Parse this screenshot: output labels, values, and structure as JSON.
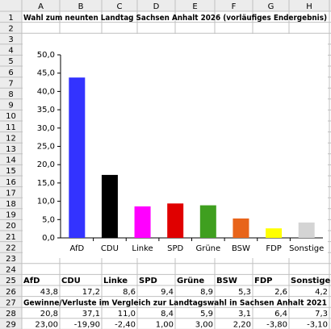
{
  "sheet": {
    "columns": [
      "A",
      "B",
      "C",
      "D",
      "E",
      "F",
      "G",
      "H"
    ],
    "row_numbers": [
      1,
      2,
      3,
      4,
      5,
      6,
      7,
      8,
      9,
      10,
      11,
      12,
      13,
      14,
      15,
      16,
      17,
      18,
      19,
      20,
      21,
      22,
      23,
      24,
      25,
      26,
      27,
      28,
      29
    ],
    "rows": [
      {
        "row": 1,
        "cells": [
          "Wahl zum neunten Landtag Sachsen Anhalt 2026 (vorläufiges Endergebnis)"
        ]
      },
      {
        "row": 25,
        "cells": [
          "AfD",
          "CDU",
          "Linke",
          "SPD",
          "Grüne",
          "BSW",
          "FDP",
          "Sonstige"
        ]
      },
      {
        "row": 26,
        "cells": [
          "43,8",
          "17,2",
          "8,6",
          "9,4",
          "8,9",
          "5,3",
          "2,6",
          "4,2"
        ]
      },
      {
        "row": 27,
        "cells": [
          "Gewinne/Verluste im Vergleich zur Landtagswahl in Sachsen Anhalt 2021"
        ]
      },
      {
        "row": 28,
        "cells": [
          "20,8",
          "37,1",
          "11,0",
          "8,4",
          "5,9",
          "3,1",
          "6,4",
          "7,3"
        ]
      },
      {
        "row": 29,
        "cells": [
          "23,00",
          "-19,90",
          "-2,40",
          "1,00",
          "3,00",
          "2,20",
          "-3,80",
          "-3,10"
        ]
      }
    ]
  },
  "chart_data": {
    "type": "bar",
    "categories": [
      "AfD",
      "CDU",
      "Linke",
      "SPD",
      "Grüne",
      "BSW",
      "FDP",
      "Sonstige"
    ],
    "values": [
      43.8,
      17.2,
      8.6,
      9.4,
      8.9,
      5.3,
      2.6,
      4.2
    ],
    "colors": [
      "#3333ff",
      "#000000",
      "#ff00ff",
      "#e00000",
      "#3f9f1f",
      "#e8641a",
      "#ffff00",
      "#d4d4d4"
    ],
    "ylim": [
      0,
      50
    ],
    "yticks": [
      {
        "value": 0,
        "label": "0,0"
      },
      {
        "value": 5,
        "label": "5,0"
      },
      {
        "value": 10,
        "label": "10,0"
      },
      {
        "value": 15,
        "label": "15,0"
      },
      {
        "value": 20,
        "label": "20,0"
      },
      {
        "value": 25,
        "label": "25,0"
      },
      {
        "value": 30,
        "label": "30,0"
      },
      {
        "value": 35,
        "label": "35,0"
      },
      {
        "value": 40,
        "label": "40,0"
      },
      {
        "value": 45,
        "label": "45,0"
      },
      {
        "value": 50,
        "label": "50,0"
      }
    ],
    "grid": false
  }
}
